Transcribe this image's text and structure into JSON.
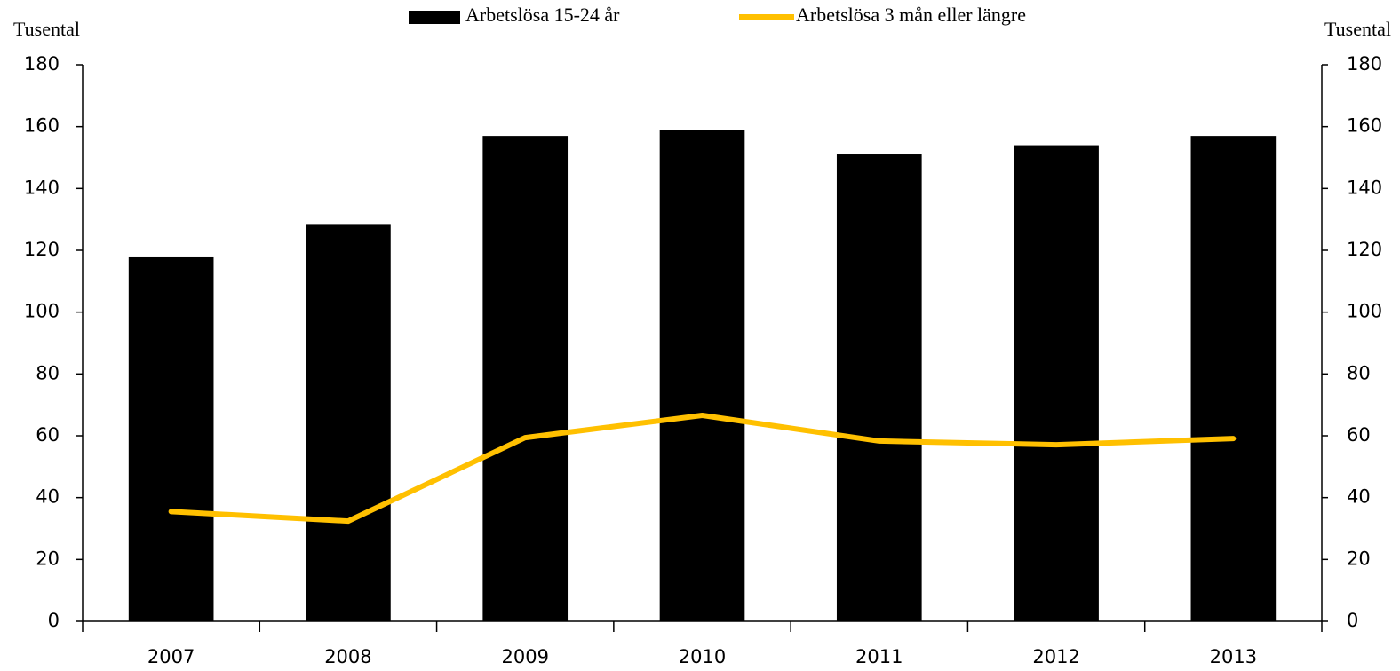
{
  "chart_data": {
    "type": "bar",
    "y_label": "Tusental",
    "y2_label": "Tusental",
    "categories": [
      "2007",
      "2008",
      "2009",
      "2010",
      "2011",
      "2012",
      "2013"
    ],
    "series": [
      {
        "name": "Arbetslösa 15-24 år",
        "type": "bar",
        "color": "#000000",
        "values": [
          118,
          128.5,
          157,
          159,
          151,
          154,
          157
        ]
      },
      {
        "name": "Arbetslösa 3 mån eller längre",
        "type": "line",
        "axis": "y2",
        "color": "#ffc000",
        "values": [
          35.5,
          32.4,
          59.4,
          66.6,
          58.3,
          57.1,
          59.1
        ]
      }
    ],
    "ylim": [
      0,
      180
    ],
    "yticks": [
      0,
      20,
      40,
      60,
      80,
      100,
      120,
      140,
      160,
      180
    ],
    "y2lim": [
      0,
      180
    ],
    "y2ticks": [
      0,
      20,
      40,
      60,
      80,
      100,
      120,
      140,
      160,
      180
    ],
    "grid": false,
    "legend": "top"
  }
}
